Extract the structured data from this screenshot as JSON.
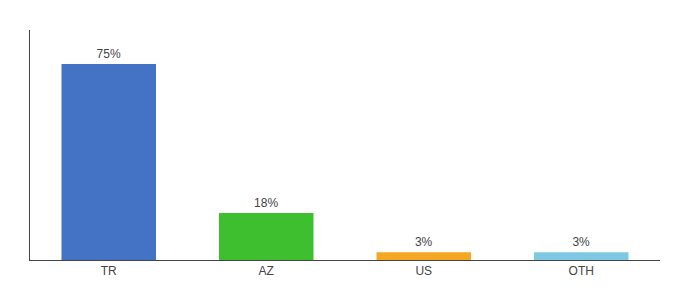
{
  "chart_data": {
    "type": "bar",
    "categories": [
      "TR",
      "AZ",
      "US",
      "OTH"
    ],
    "values": [
      75,
      18,
      3,
      3
    ],
    "value_labels": [
      "75%",
      "18%",
      "3%",
      "3%"
    ],
    "data_labels": true,
    "colors": [
      "#4472c4",
      "#3dbf30",
      "#f5a623",
      "#7ec8e3"
    ],
    "ylim": [
      0,
      88
    ],
    "grid": false,
    "tick_labels": "x"
  }
}
